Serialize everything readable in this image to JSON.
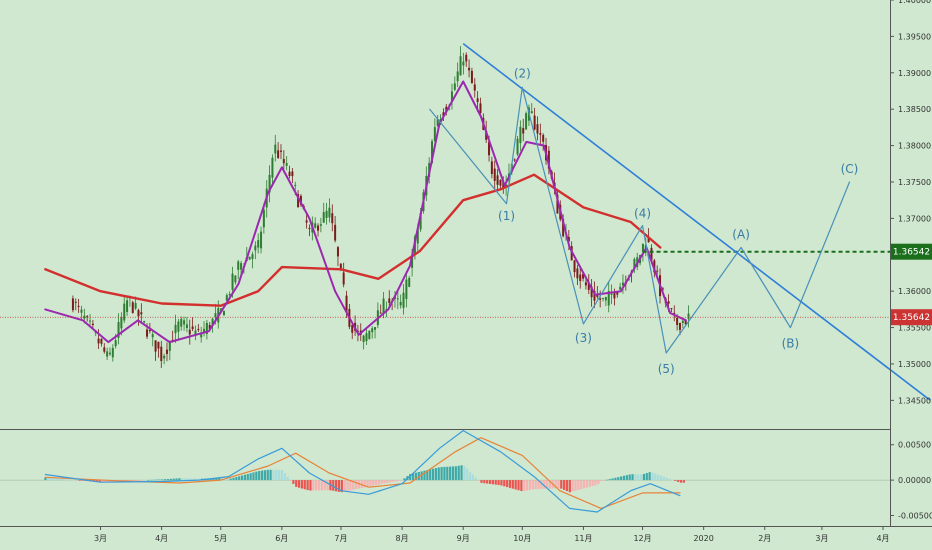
{
  "theme": {
    "background": "#cfe8cf",
    "up_color": "#2e7d32",
    "down_color": "#7a1c1c",
    "ema_color": "#d32f2f",
    "sma_color": "#9c27b0",
    "trend_color": "#2f7ed8",
    "wave_color": "#4a90b8",
    "label_color": "#3a7ca5",
    "level_color": "#1b6e1b",
    "price_tag_color": "#cc3333",
    "macd_line_color": "#3a9bd9",
    "signal_line_color": "#e8833a",
    "hist_pos_color": "#3fa9a9",
    "hist_pos_light": "#a9dcdc",
    "hist_neg_color": "#ef5350",
    "hist_neg_light": "#f7b2b2"
  },
  "chart_data": [
    {
      "type": "candlestick",
      "price_axis_ticks": [
        "1.40000",
        "1.39500",
        "1.39000",
        "1.38500",
        "1.38000",
        "1.37500",
        "1.37000",
        "1.36500",
        "1.36000",
        "1.35500",
        "1.35000",
        "1.34500"
      ],
      "ylim": [
        1.3412,
        1.4
      ],
      "time_axis_labels": [
        "3月",
        "4月",
        "5月",
        "6月",
        "7月",
        "8月",
        "9月",
        "10月",
        "11月",
        "12月",
        "2020",
        "2月",
        "3月",
        "4月"
      ],
      "current_price": "1.35642",
      "level_price": "1.36542",
      "wave_labels": [
        "(1)",
        "(2)",
        "(3)",
        "(4)",
        "(5)",
        "(A)",
        "(B)",
        "(C)"
      ],
      "series": [
        {
          "kind": "candles",
          "color_up": "#2e7d32",
          "color_down": "#7a1c1c"
        },
        {
          "kind": "moving-average",
          "color": "#d32f2f"
        },
        {
          "kind": "moving-average",
          "color": "#9c27b0"
        }
      ],
      "price_path": [
        {
          "t": "2019-02-15",
          "p": 1.3585
        },
        {
          "t": "2019-02-25",
          "p": 1.3545
        },
        {
          "t": "2019-03-05",
          "p": 1.3505
        },
        {
          "t": "2019-03-15",
          "p": 1.359
        },
        {
          "t": "2019-03-25",
          "p": 1.3545
        },
        {
          "t": "2019-04-01",
          "p": 1.351
        },
        {
          "t": "2019-04-10",
          "p": 1.3555
        },
        {
          "t": "2019-04-20",
          "p": 1.354
        },
        {
          "t": "2019-05-01",
          "p": 1.357
        },
        {
          "t": "2019-05-10",
          "p": 1.3635
        },
        {
          "t": "2019-05-20",
          "p": 1.366
        },
        {
          "t": "2019-05-28",
          "p": 1.38
        },
        {
          "t": "2019-06-05",
          "p": 1.376
        },
        {
          "t": "2019-06-15",
          "p": 1.368
        },
        {
          "t": "2019-06-25",
          "p": 1.371
        },
        {
          "t": "2019-07-05",
          "p": 1.356
        },
        {
          "t": "2019-07-12",
          "p": 1.353
        },
        {
          "t": "2019-07-25",
          "p": 1.359
        },
        {
          "t": "2019-08-01",
          "p": 1.358
        },
        {
          "t": "2019-08-10",
          "p": 1.37
        },
        {
          "t": "2019-08-18",
          "p": 1.3835
        },
        {
          "t": "2019-08-25",
          "p": 1.386
        },
        {
          "t": "2019-09-01",
          "p": 1.3925
        },
        {
          "t": "2019-09-08",
          "p": 1.386
        },
        {
          "t": "2019-09-15",
          "p": 1.377
        },
        {
          "t": "2019-09-22",
          "p": 1.374
        },
        {
          "t": "2019-09-30",
          "p": 1.382
        },
        {
          "t": "2019-10-05",
          "p": 1.3845
        },
        {
          "t": "2019-10-12",
          "p": 1.38
        },
        {
          "t": "2019-10-20",
          "p": 1.37
        },
        {
          "t": "2019-10-28",
          "p": 1.363
        },
        {
          "t": "2019-11-05",
          "p": 1.3595
        },
        {
          "t": "2019-11-12",
          "p": 1.3585
        },
        {
          "t": "2019-11-20",
          "p": 1.361
        },
        {
          "t": "2019-11-28",
          "p": 1.364
        },
        {
          "t": "2019-12-03",
          "p": 1.3675
        },
        {
          "t": "2019-12-10",
          "p": 1.36
        },
        {
          "t": "2019-12-18",
          "p": 1.3555
        },
        {
          "t": "2019-12-25",
          "p": 1.3564
        }
      ],
      "ema_path": [
        {
          "t": "2019-02-01",
          "p": 1.363
        },
        {
          "t": "2019-03-01",
          "p": 1.36
        },
        {
          "t": "2019-04-01",
          "p": 1.3583
        },
        {
          "t": "2019-05-01",
          "p": 1.358
        },
        {
          "t": "2019-05-20",
          "p": 1.36
        },
        {
          "t": "2019-06-01",
          "p": 1.3633
        },
        {
          "t": "2019-07-01",
          "p": 1.363
        },
        {
          "t": "2019-07-20",
          "p": 1.3617
        },
        {
          "t": "2019-08-10",
          "p": 1.3655
        },
        {
          "t": "2019-09-01",
          "p": 1.3725
        },
        {
          "t": "2019-09-20",
          "p": 1.374
        },
        {
          "t": "2019-10-07",
          "p": 1.376
        },
        {
          "t": "2019-11-01",
          "p": 1.3715
        },
        {
          "t": "2019-11-25",
          "p": 1.3695
        },
        {
          "t": "2019-12-10",
          "p": 1.366
        }
      ],
      "sma_path": [
        {
          "t": "2019-02-01",
          "p": 1.3575
        },
        {
          "t": "2019-02-20",
          "p": 1.356
        },
        {
          "t": "2019-03-05",
          "p": 1.353
        },
        {
          "t": "2019-03-20",
          "p": 1.356
        },
        {
          "t": "2019-04-05",
          "p": 1.353
        },
        {
          "t": "2019-04-25",
          "p": 1.3545
        },
        {
          "t": "2019-05-10",
          "p": 1.361
        },
        {
          "t": "2019-05-25",
          "p": 1.3735
        },
        {
          "t": "2019-06-01",
          "p": 1.377
        },
        {
          "t": "2019-06-15",
          "p": 1.37
        },
        {
          "t": "2019-06-28",
          "p": 1.36
        },
        {
          "t": "2019-07-10",
          "p": 1.354
        },
        {
          "t": "2019-07-25",
          "p": 1.3575
        },
        {
          "t": "2019-08-05",
          "p": 1.3635
        },
        {
          "t": "2019-08-20",
          "p": 1.383
        },
        {
          "t": "2019-09-01",
          "p": 1.3888
        },
        {
          "t": "2019-09-10",
          "p": 1.384
        },
        {
          "t": "2019-09-22",
          "p": 1.3745
        },
        {
          "t": "2019-10-03",
          "p": 1.3805
        },
        {
          "t": "2019-10-12",
          "p": 1.38
        },
        {
          "t": "2019-10-25",
          "p": 1.366
        },
        {
          "t": "2019-11-07",
          "p": 1.3595
        },
        {
          "t": "2019-11-20",
          "p": 1.36
        },
        {
          "t": "2019-12-03",
          "p": 1.366
        },
        {
          "t": "2019-12-15",
          "p": 1.357
        },
        {
          "t": "2019-12-23",
          "p": 1.356
        }
      ],
      "trendline": [
        {
          "t": "2019-09-01",
          "p": 1.394
        },
        {
          "t": "2020-04-25",
          "p": 1.345
        }
      ],
      "wave_points": [
        {
          "label": "(1)",
          "t": "2019-09-23",
          "p": 1.372
        },
        {
          "label": "(2)",
          "t": "2019-10-01",
          "p": 1.388
        },
        {
          "label": "(3)",
          "t": "2019-11-01",
          "p": 1.3555
        },
        {
          "label": "(4)",
          "t": "2019-12-01",
          "p": 1.369
        },
        {
          "label": "(5)",
          "t": "2019-12-13",
          "p": 1.3515
        },
        {
          "label": "(A)",
          "t": "2020-01-20",
          "p": 1.366
        },
        {
          "label": "(B)",
          "t": "2020-02-14",
          "p": 1.355
        },
        {
          "label": "(C)",
          "t": "2020-03-15",
          "p": 1.375
        }
      ],
      "wave_path": [
        {
          "t": "2019-08-15",
          "p": 1.385
        },
        {
          "t": "2019-09-23",
          "p": 1.372
        },
        {
          "t": "2019-10-01",
          "p": 1.388
        },
        {
          "t": "2019-11-01",
          "p": 1.3555
        },
        {
          "t": "2019-12-01",
          "p": 1.369
        },
        {
          "t": "2019-12-13",
          "p": 1.3515
        },
        {
          "t": "2020-01-20",
          "p": 1.366
        },
        {
          "t": "2020-02-14",
          "p": 1.355
        },
        {
          "t": "2020-03-15",
          "p": 1.375
        }
      ]
    },
    {
      "type": "macd",
      "axis_ticks": [
        "0.00500",
        "0.00000",
        "-0.00500"
      ],
      "ylim": [
        -0.0062,
        0.0068
      ],
      "macd_path": [
        {
          "t": "2019-02-01",
          "p": 0.0008
        },
        {
          "t": "2019-03-01",
          "p": -0.0003
        },
        {
          "t": "2019-04-01",
          "p": -0.0002
        },
        {
          "t": "2019-04-20",
          "p": 0.0
        },
        {
          "t": "2019-05-05",
          "p": 0.0005
        },
        {
          "t": "2019-05-20",
          "p": 0.003
        },
        {
          "t": "2019-06-01",
          "p": 0.0045
        },
        {
          "t": "2019-06-15",
          "p": 0.001
        },
        {
          "t": "2019-07-01",
          "p": -0.0015
        },
        {
          "t": "2019-07-15",
          "p": -0.002
        },
        {
          "t": "2019-08-01",
          "p": -0.0005
        },
        {
          "t": "2019-08-20",
          "p": 0.0045
        },
        {
          "t": "2019-09-01",
          "p": 0.007
        },
        {
          "t": "2019-09-20",
          "p": 0.004
        },
        {
          "t": "2019-10-07",
          "p": 0.0005
        },
        {
          "t": "2019-10-25",
          "p": -0.004
        },
        {
          "t": "2019-11-08",
          "p": -0.0045
        },
        {
          "t": "2019-11-25",
          "p": -0.0015
        },
        {
          "t": "2019-12-05",
          "p": -0.0005
        },
        {
          "t": "2019-12-20",
          "p": -0.0022
        }
      ],
      "signal_path": [
        {
          "t": "2019-02-01",
          "p": 0.0004
        },
        {
          "t": "2019-03-10",
          "p": -0.0001
        },
        {
          "t": "2019-04-10",
          "p": -0.0004
        },
        {
          "t": "2019-05-01",
          "p": 0.0
        },
        {
          "t": "2019-05-25",
          "p": 0.002
        },
        {
          "t": "2019-06-08",
          "p": 0.0038
        },
        {
          "t": "2019-06-25",
          "p": 0.001
        },
        {
          "t": "2019-07-15",
          "p": -0.001
        },
        {
          "t": "2019-08-05",
          "p": -0.0004
        },
        {
          "t": "2019-08-28",
          "p": 0.004
        },
        {
          "t": "2019-09-10",
          "p": 0.006
        },
        {
          "t": "2019-10-01",
          "p": 0.0035
        },
        {
          "t": "2019-10-20",
          "p": -0.0015
        },
        {
          "t": "2019-11-10",
          "p": -0.004
        },
        {
          "t": "2019-12-01",
          "p": -0.0018
        },
        {
          "t": "2019-12-20",
          "p": -0.0018
        }
      ]
    }
  ]
}
